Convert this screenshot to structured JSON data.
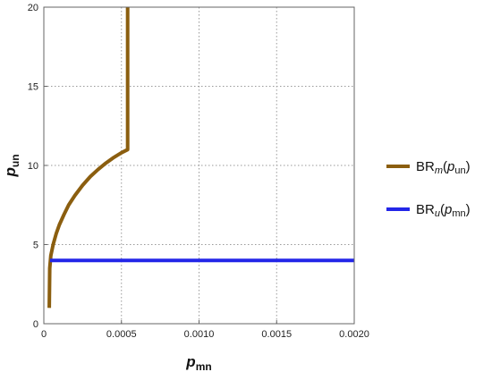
{
  "chart_data": {
    "type": "line",
    "title": "",
    "xlabel": {
      "base": "p",
      "sub": "mn"
    },
    "ylabel": {
      "base": "p",
      "sub": "un"
    },
    "xlim": [
      0,
      0.002
    ],
    "ylim": [
      0,
      20
    ],
    "x_ticks": [
      0,
      0.0005,
      0.001,
      0.0015,
      0.002
    ],
    "x_tick_labels": [
      "0",
      "0.0005",
      "0.0010",
      "0.0015",
      "0.0020"
    ],
    "y_ticks": [
      0,
      5,
      10,
      15,
      20
    ],
    "y_tick_labels": [
      "0",
      "5",
      "10",
      "15",
      "20"
    ],
    "grid": true,
    "legend_position": "right",
    "series": [
      {
        "name": "BR_m(p_un)",
        "legend": {
          "base": "BR",
          "sub": "m",
          "arg_base": "p",
          "arg_sub": "un"
        },
        "color": "#8B5E0F",
        "x": [
          3.5e-05,
          3.8e-05,
          4.5e-05,
          6e-05,
          8e-05,
          0.0001,
          0.00013,
          0.00016,
          0.0002,
          0.00025,
          0.0003,
          0.00035,
          0.0004,
          0.00045,
          0.0005,
          0.00054,
          0.00054
        ],
        "y": [
          1,
          3.5,
          4.3,
          5.0,
          5.7,
          6.25,
          6.9,
          7.5,
          8.1,
          8.75,
          9.3,
          9.75,
          10.15,
          10.5,
          10.8,
          11.0,
          20
        ]
      },
      {
        "name": "BR_u(p_mn)",
        "legend": {
          "base": "BR",
          "sub": "u",
          "arg_base": "p",
          "arg_sub": "mn"
        },
        "color": "#2326E8",
        "x": [
          4e-05,
          0.002
        ],
        "y": [
          4,
          4
        ]
      }
    ]
  }
}
